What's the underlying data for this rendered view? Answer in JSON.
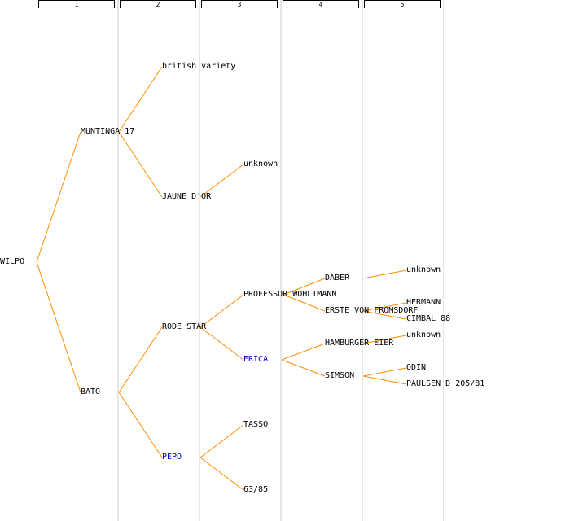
{
  "columns": [
    "1",
    "2",
    "3",
    "4",
    "5"
  ],
  "colors": {
    "edge": "#ff8c00",
    "link": "#0000cc",
    "text": "#000000",
    "grid": "#e6e6e6"
  },
  "nodes": [
    {
      "id": "wilpo",
      "label": "WILPO",
      "gen": 0,
      "parent": null,
      "link": false
    },
    {
      "id": "muntinga17",
      "label": "MUNTINGA 17",
      "gen": 1,
      "parent": "wilpo",
      "link": false
    },
    {
      "id": "bato",
      "label": "BATO",
      "gen": 1,
      "parent": "wilpo",
      "link": false
    },
    {
      "id": "british",
      "label": "british variety",
      "gen": 2,
      "parent": "muntinga17",
      "link": false
    },
    {
      "id": "jaunedor",
      "label": "JAUNE D'OR",
      "gen": 2,
      "parent": "muntinga17",
      "link": false
    },
    {
      "id": "rodestar",
      "label": "RODE STAR",
      "gen": 2,
      "parent": "bato",
      "link": false
    },
    {
      "id": "pepo",
      "label": "PEPO",
      "gen": 2,
      "parent": "bato",
      "link": true
    },
    {
      "id": "unknown1",
      "label": "unknown",
      "gen": 3,
      "parent": "jaunedor",
      "link": false
    },
    {
      "id": "wohltmann",
      "label": "PROFESSOR WOHLTMANN",
      "gen": 3,
      "parent": "rodestar",
      "link": false
    },
    {
      "id": "erica",
      "label": "ERICA",
      "gen": 3,
      "parent": "rodestar",
      "link": true
    },
    {
      "id": "tasso",
      "label": "TASSO",
      "gen": 3,
      "parent": "pepo",
      "link": false
    },
    {
      "id": "n6385",
      "label": "63/85",
      "gen": 3,
      "parent": "pepo",
      "link": false
    },
    {
      "id": "daber",
      "label": "DABER",
      "gen": 4,
      "parent": "wohltmann",
      "link": false
    },
    {
      "id": "erste",
      "label": "ERSTE VON FROMSDORF",
      "gen": 4,
      "parent": "wohltmann",
      "link": false
    },
    {
      "id": "hamburger",
      "label": "HAMBURGER EIER",
      "gen": 4,
      "parent": "erica",
      "link": false
    },
    {
      "id": "simson",
      "label": "SIMSON",
      "gen": 4,
      "parent": "erica",
      "link": false
    },
    {
      "id": "unknown2",
      "label": "unknown",
      "gen": 5,
      "parent": "daber",
      "link": false
    },
    {
      "id": "hermann",
      "label": "HERMANN",
      "gen": 5,
      "parent": "erste",
      "link": false
    },
    {
      "id": "cimbal88",
      "label": "CIMBAL 88",
      "gen": 5,
      "parent": "erste",
      "link": false
    },
    {
      "id": "unknown3",
      "label": "unknown",
      "gen": 5,
      "parent": "hamburger",
      "link": false
    },
    {
      "id": "odin",
      "label": "ODIN",
      "gen": 5,
      "parent": "simson",
      "link": false
    },
    {
      "id": "paulsen",
      "label": "PAULSEN D 205/81",
      "gen": 5,
      "parent": "simson",
      "link": false
    }
  ]
}
